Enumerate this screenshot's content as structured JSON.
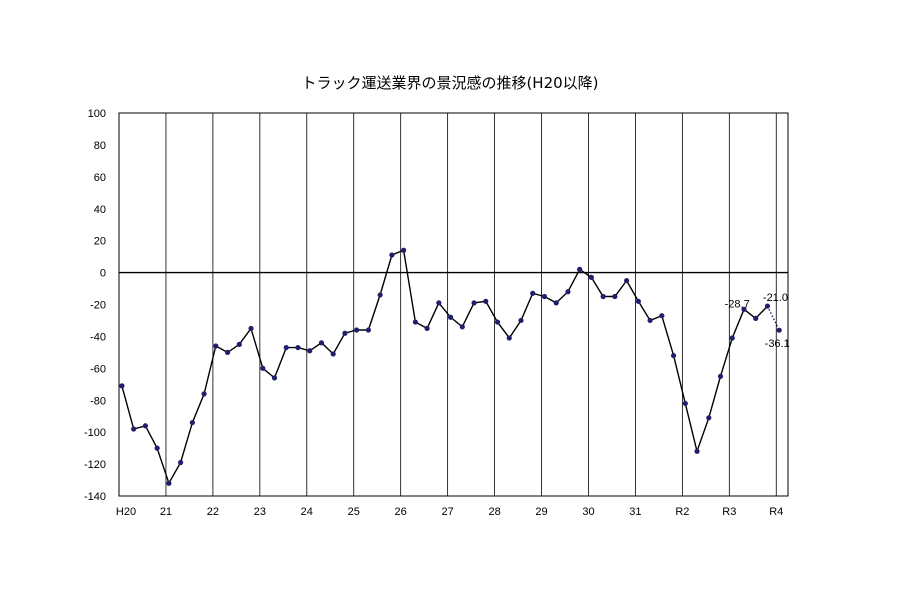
{
  "chart_data": {
    "type": "line",
    "title": "トラック運送業界の景況感の推移(H20以降)",
    "xlabel": "",
    "ylabel": "",
    "ylim": [
      -140,
      100
    ],
    "yticks": [
      100,
      80,
      60,
      40,
      20,
      0,
      -20,
      -40,
      -60,
      -80,
      -100,
      -120,
      -140
    ],
    "grid": "vertical lines at year boundaries",
    "x_tick_labels": [
      "H20",
      "21",
      "22",
      "23",
      "24",
      "25",
      "26",
      "27",
      "28",
      "29",
      "30",
      "31",
      "R2",
      "R3",
      "R4"
    ],
    "series": [
      {
        "values": [
          -71,
          -98,
          -96,
          -110,
          -132,
          -119,
          -94,
          -76,
          -46,
          -50,
          -45,
          -35,
          -60,
          -66,
          -47,
          -47,
          -49,
          -44,
          -51,
          -38,
          -36,
          -36,
          -14,
          11,
          14,
          -31,
          -35,
          -19,
          -28,
          -34,
          -19,
          -18,
          -31,
          -41,
          -30,
          -13,
          -15,
          -19,
          -12,
          2,
          -3,
          -15,
          -15,
          -5,
          -18,
          -30,
          -27,
          -52,
          -82,
          -112,
          -91,
          -65,
          -41,
          -23,
          -28.7,
          -21.0,
          -36.1
        ],
        "color": "#000000",
        "marker_color": "#1f1f6e",
        "last_segment_style": "dotted"
      }
    ],
    "data_labels": [
      {
        "index": 54,
        "text": "-28.7"
      },
      {
        "index": 55,
        "text": "-21.0"
      },
      {
        "index": 56,
        "text": "-36.1"
      }
    ]
  }
}
